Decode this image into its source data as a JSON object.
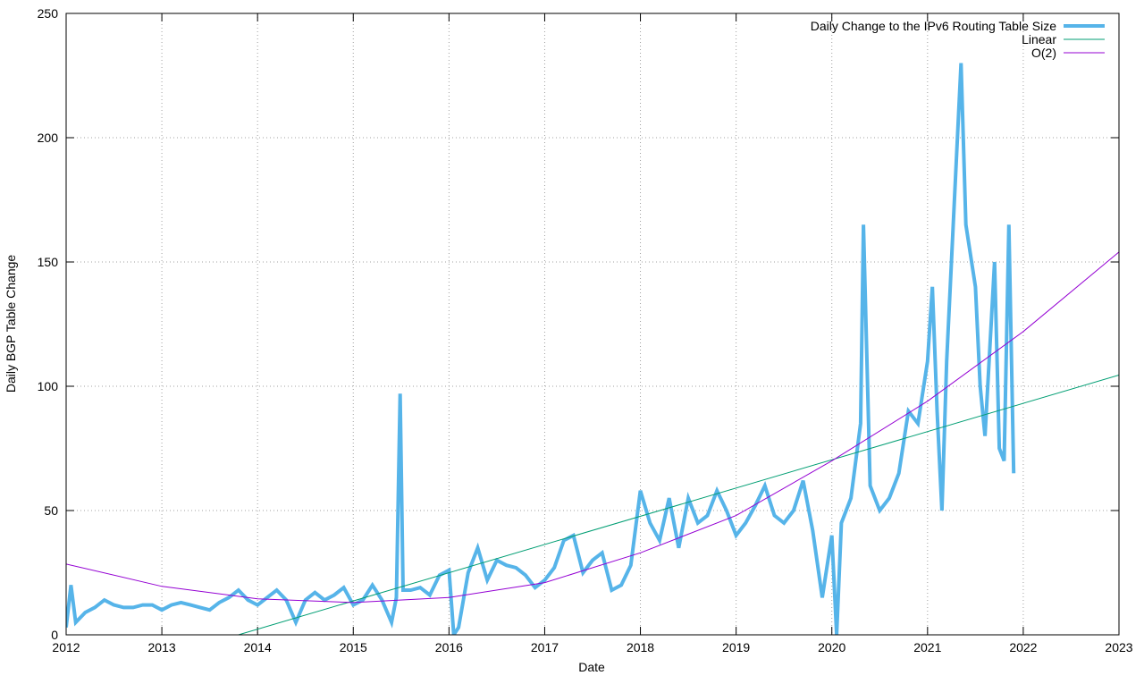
{
  "chart_data": {
    "type": "line",
    "xlabel": "Date",
    "ylabel": "Daily BGP Table Change",
    "xlim": [
      2012,
      2023
    ],
    "xticks": [
      2012,
      2013,
      2014,
      2015,
      2016,
      2017,
      2018,
      2019,
      2020,
      2021,
      2022,
      2023
    ],
    "ylim": [
      0,
      250
    ],
    "yticks": [
      0,
      50,
      100,
      150,
      200,
      250
    ],
    "grid": true,
    "legend": "top-right",
    "series": [
      {
        "name": "Daily Change to the IPv6 Routing Table Size",
        "color": "#56b4e9",
        "x": [
          2012.0,
          2012.05,
          2012.1,
          2012.2,
          2012.3,
          2012.4,
          2012.5,
          2012.6,
          2012.7,
          2012.8,
          2012.9,
          2013.0,
          2013.1,
          2013.2,
          2013.3,
          2013.4,
          2013.5,
          2013.6,
          2013.7,
          2013.8,
          2013.9,
          2014.0,
          2014.1,
          2014.2,
          2014.3,
          2014.4,
          2014.5,
          2014.6,
          2014.7,
          2014.8,
          2014.9,
          2015.0,
          2015.1,
          2015.2,
          2015.3,
          2015.4,
          2015.45,
          2015.49,
          2015.52,
          2015.6,
          2015.7,
          2015.8,
          2015.9,
          2016.0,
          2016.05,
          2016.1,
          2016.2,
          2016.3,
          2016.4,
          2016.5,
          2016.6,
          2016.7,
          2016.8,
          2016.9,
          2017.0,
          2017.1,
          2017.2,
          2017.3,
          2017.4,
          2017.5,
          2017.6,
          2017.7,
          2017.8,
          2017.9,
          2018.0,
          2018.1,
          2018.2,
          2018.3,
          2018.4,
          2018.5,
          2018.6,
          2018.7,
          2018.8,
          2018.9,
          2019.0,
          2019.1,
          2019.2,
          2019.3,
          2019.4,
          2019.5,
          2019.6,
          2019.7,
          2019.8,
          2019.9,
          2020.0,
          2020.05,
          2020.1,
          2020.2,
          2020.3,
          2020.33,
          2020.4,
          2020.5,
          2020.6,
          2020.7,
          2020.8,
          2020.9,
          2021.0,
          2021.05,
          2021.1,
          2021.15,
          2021.2,
          2021.3,
          2021.35,
          2021.4,
          2021.5,
          2021.55,
          2021.6,
          2021.7,
          2021.75,
          2021.8,
          2021.85,
          2021.9
        ],
        "values": [
          3,
          20,
          5,
          9,
          11,
          14,
          12,
          11,
          11,
          12,
          12,
          10,
          12,
          13,
          12,
          11,
          10,
          13,
          15,
          18,
          14,
          12,
          15,
          18,
          14,
          5,
          14,
          17,
          14,
          16,
          19,
          12,
          14,
          20,
          14,
          5,
          15,
          97,
          18,
          18,
          19,
          16,
          24,
          26,
          0,
          3,
          25,
          35,
          22,
          30,
          28,
          27,
          24,
          19,
          22,
          27,
          38,
          40,
          25,
          30,
          33,
          18,
          20,
          28,
          58,
          45,
          38,
          55,
          35,
          55,
          45,
          48,
          58,
          50,
          40,
          45,
          52,
          60,
          48,
          45,
          50,
          62,
          42,
          15,
          40,
          0,
          45,
          55,
          85,
          165,
          60,
          50,
          55,
          65,
          90,
          85,
          110,
          140,
          90,
          50,
          110,
          190,
          230,
          165,
          140,
          100,
          80,
          150,
          75,
          70,
          165,
          65
        ]
      },
      {
        "name": "Linear",
        "color": "#009e73",
        "x": [
          2013.8,
          2023
        ],
        "values": [
          0,
          104.5
        ]
      },
      {
        "name": "O(2)",
        "color": "#9400d3",
        "x": [
          2012,
          2013,
          2014,
          2015,
          2016,
          2017,
          2018,
          2019,
          2020,
          2021,
          2022,
          2023
        ],
        "values": [
          28.5,
          19.5,
          14.5,
          13,
          15,
          21,
          33,
          48,
          70,
          94,
          122,
          154
        ]
      }
    ]
  }
}
